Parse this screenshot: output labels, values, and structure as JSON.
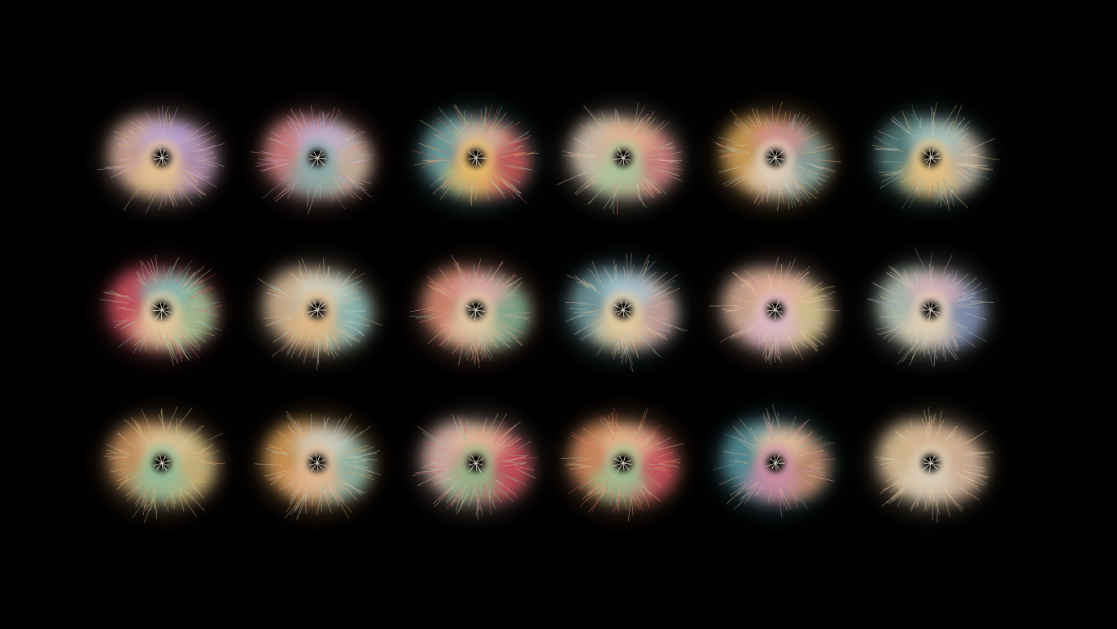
{
  "background": "#000000",
  "rows": [
    {
      "items": [
        {
          "colors": [
            "#e7b9a8",
            "#c9a3c8",
            "#e6c48a",
            "#b8a4d6"
          ]
        },
        {
          "colors": [
            "#e98f8f",
            "#e8d3b8",
            "#7fa6a6",
            "#bcb0d8"
          ]
        },
        {
          "colors": [
            "#7fb5b5",
            "#e35f5f",
            "#e8c36b",
            "#d9c4a6"
          ]
        },
        {
          "colors": [
            "#ead8c4",
            "#e98d8d",
            "#a6c99a",
            "#e2b78f"
          ]
        },
        {
          "colors": [
            "#e8b060",
            "#8fb6b6",
            "#e9d2bd",
            "#d98a8a"
          ]
        },
        {
          "colors": [
            "#5f8a86",
            "#e9d5bd",
            "#e8c07a",
            "#a4c3c2"
          ]
        }
      ]
    },
    {
      "items": [
        {
          "colors": [
            "#e05b6a",
            "#b9e0a9",
            "#e8c8a0",
            "#7fb4b5"
          ]
        },
        {
          "colors": [
            "#e9c9a5",
            "#9ed5d2",
            "#e5b37e",
            "#dcd2c0"
          ]
        },
        {
          "colors": [
            "#ec9a7f",
            "#8ac6a4",
            "#eac7a4",
            "#e6a8a8"
          ]
        },
        {
          "colors": [
            "#7fa9ad",
            "#e8b9b0",
            "#e6cf9e",
            "#a9cbd7"
          ]
        },
        {
          "colors": [
            "#e8bca3",
            "#f2e1a4",
            "#d9b3c8",
            "#e1ad9d"
          ]
        },
        {
          "colors": [
            "#c8d6c8",
            "#8f9ec8",
            "#ead5b2",
            "#e3b4b8"
          ]
        }
      ]
    },
    {
      "items": [
        {
          "colors": [
            "#e2a56c",
            "#e8d08f",
            "#8ab99a",
            "#d9c59b"
          ]
        },
        {
          "colors": [
            "#e9a85f",
            "#9fd0c4",
            "#e8b38d",
            "#d8d0c6"
          ]
        },
        {
          "colors": [
            "#f0c7bd",
            "#e04e5f",
            "#8ab98a",
            "#e3c69d"
          ]
        },
        {
          "colors": [
            "#e99c6b",
            "#e05a6a",
            "#99c896",
            "#e6c89a"
          ]
        },
        {
          "colors": [
            "#5f9fa8",
            "#e5a07a",
            "#c98aa8",
            "#e7c8a8"
          ]
        },
        {
          "colors": [
            "#f2d4a7",
            "#ecc7ad",
            "#d7cdb9",
            "#d1b08e"
          ]
        }
      ]
    }
  ]
}
